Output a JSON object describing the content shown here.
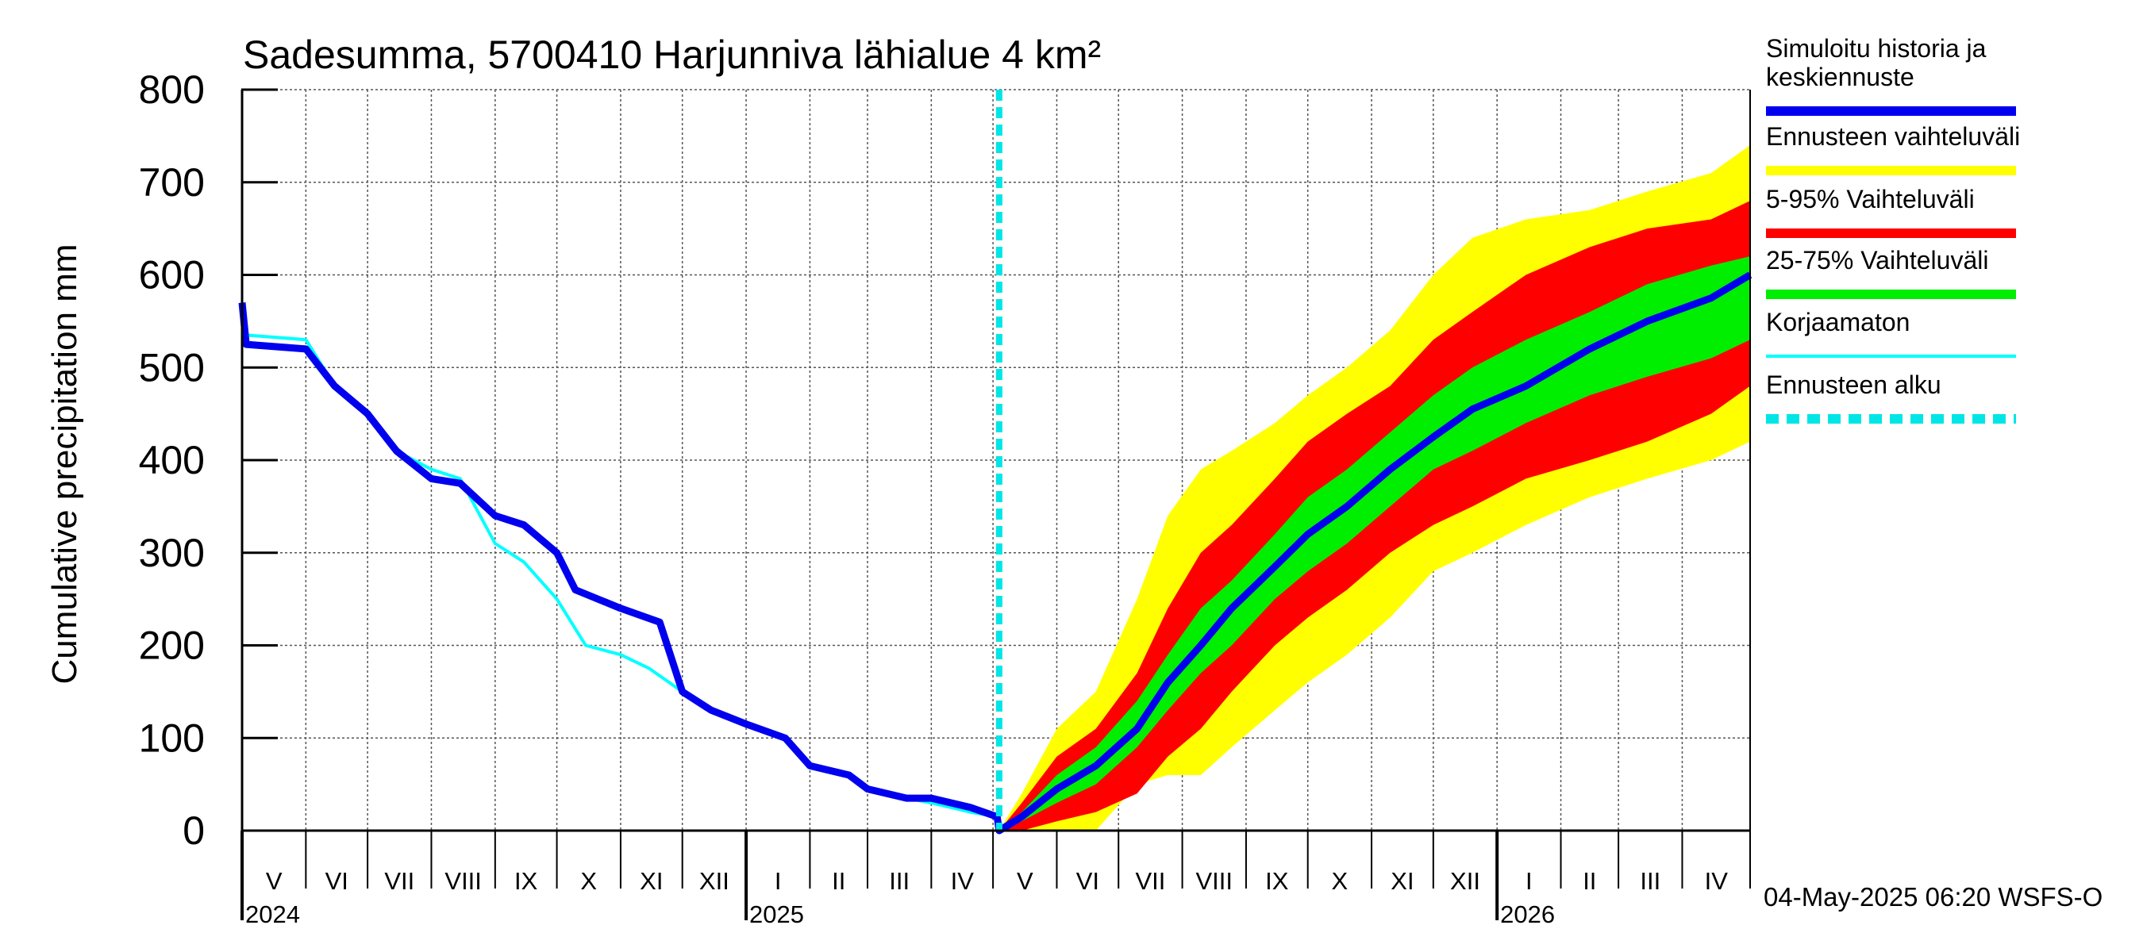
{
  "chart_data": {
    "type": "area",
    "title": "Sadesumma, 5700410 Harjunniva lähialue 4 km²",
    "ylabel": "Cumulative precipitation   mm",
    "ylim": [
      0,
      800
    ],
    "yticks": [
      "0",
      "100",
      "200",
      "300",
      "400",
      "500",
      "600",
      "700",
      "800"
    ],
    "grid": true,
    "x_start": "2024-05-01",
    "x_end": "2026-05-04",
    "forecast_start": "2025-05-04",
    "years": [
      {
        "label": "2024",
        "date": "2024-05-01"
      },
      {
        "label": "2025",
        "date": "2025-01-01"
      },
      {
        "label": "2026",
        "date": "2026-01-01"
      }
    ],
    "months": [
      {
        "label": "V",
        "start": "2024-05-01"
      },
      {
        "label": "VI",
        "start": "2024-06-01"
      },
      {
        "label": "VII",
        "start": "2024-07-01"
      },
      {
        "label": "VIII",
        "start": "2024-08-01"
      },
      {
        "label": "IX",
        "start": "2024-09-01"
      },
      {
        "label": "X",
        "start": "2024-10-01"
      },
      {
        "label": "XI",
        "start": "2024-11-01"
      },
      {
        "label": "XII",
        "start": "2024-12-01"
      },
      {
        "label": "I",
        "start": "2025-01-01"
      },
      {
        "label": "II",
        "start": "2025-02-01"
      },
      {
        "label": "III",
        "start": "2025-03-01"
      },
      {
        "label": "IV",
        "start": "2025-04-01"
      },
      {
        "label": "V",
        "start": "2025-05-01"
      },
      {
        "label": "VI",
        "start": "2025-06-01"
      },
      {
        "label": "VII",
        "start": "2025-07-01"
      },
      {
        "label": "VIII",
        "start": "2025-08-01"
      },
      {
        "label": "IX",
        "start": "2025-09-01"
      },
      {
        "label": "X",
        "start": "2025-10-01"
      },
      {
        "label": "XI",
        "start": "2025-11-01"
      },
      {
        "label": "XII",
        "start": "2025-12-01"
      },
      {
        "label": "I",
        "start": "2026-01-01"
      },
      {
        "label": "II",
        "start": "2026-02-01"
      },
      {
        "label": "III",
        "start": "2026-03-01"
      },
      {
        "label": "IV",
        "start": "2026-04-01"
      }
    ],
    "series": [
      {
        "name": "Ennusteen vaihteluväli",
        "kind": "band",
        "color": "#ffff00",
        "x": [
          "2025-05-04",
          "2025-05-15",
          "2025-06-01",
          "2025-06-20",
          "2025-07-10",
          "2025-07-25",
          "2025-08-10",
          "2025-08-25",
          "2025-09-15",
          "2025-10-01",
          "2025-10-20",
          "2025-11-10",
          "2025-12-01",
          "2025-12-20",
          "2026-01-15",
          "2026-02-15",
          "2026-03-15",
          "2026-04-15",
          "2026-05-04"
        ],
        "upper": [
          0,
          40,
          110,
          150,
          250,
          340,
          390,
          410,
          440,
          470,
          500,
          540,
          600,
          640,
          660,
          670,
          690,
          710,
          740
        ],
        "lower": [
          0,
          0,
          0,
          0,
          50,
          60,
          60,
          90,
          130,
          160,
          190,
          230,
          280,
          300,
          330,
          360,
          380,
          400,
          420
        ]
      },
      {
        "name": "5-95% Vaihteluväli",
        "kind": "band",
        "color": "#ff0000",
        "x": [
          "2025-05-04",
          "2025-05-15",
          "2025-06-01",
          "2025-06-20",
          "2025-07-10",
          "2025-07-25",
          "2025-08-10",
          "2025-08-25",
          "2025-09-15",
          "2025-10-01",
          "2025-10-20",
          "2025-11-10",
          "2025-12-01",
          "2025-12-20",
          "2026-01-15",
          "2026-02-15",
          "2026-03-15",
          "2026-04-15",
          "2026-05-04"
        ],
        "upper": [
          0,
          30,
          80,
          110,
          170,
          240,
          300,
          330,
          380,
          420,
          450,
          480,
          530,
          560,
          600,
          630,
          650,
          660,
          680
        ],
        "lower": [
          0,
          0,
          10,
          20,
          40,
          80,
          110,
          150,
          200,
          230,
          260,
          300,
          330,
          350,
          380,
          400,
          420,
          450,
          480
        ]
      },
      {
        "name": "25-75% Vaihteluväli",
        "kind": "band",
        "color": "#00ee00",
        "x": [
          "2025-05-04",
          "2025-05-15",
          "2025-06-01",
          "2025-06-20",
          "2025-07-10",
          "2025-07-25",
          "2025-08-10",
          "2025-08-25",
          "2025-09-15",
          "2025-10-01",
          "2025-10-20",
          "2025-11-10",
          "2025-12-01",
          "2025-12-20",
          "2026-01-15",
          "2026-02-15",
          "2026-03-15",
          "2026-04-15",
          "2026-05-04"
        ],
        "upper": [
          0,
          20,
          60,
          90,
          140,
          190,
          240,
          270,
          320,
          360,
          390,
          430,
          470,
          500,
          530,
          560,
          590,
          610,
          620
        ],
        "lower": [
          0,
          10,
          30,
          50,
          90,
          130,
          170,
          200,
          250,
          280,
          310,
          350,
          390,
          410,
          440,
          470,
          490,
          510,
          530
        ]
      },
      {
        "name": "Korjaamaton",
        "kind": "line",
        "color": "#00ffff",
        "x": [
          "2024-05-01",
          "2024-05-03",
          "2024-06-01",
          "2024-06-15",
          "2024-07-01",
          "2024-07-15",
          "2024-08-01",
          "2024-08-15",
          "2024-09-01",
          "2024-09-15",
          "2024-10-01",
          "2024-10-15",
          "2024-11-01",
          "2024-11-15",
          "2024-12-01",
          "2024-12-15",
          "2025-01-01",
          "2025-01-20",
          "2025-02-01",
          "2025-02-20",
          "2025-03-01",
          "2025-03-20",
          "2025-04-01",
          "2025-04-20",
          "2025-05-03"
        ],
        "y": [
          535,
          535,
          530,
          480,
          450,
          410,
          390,
          380,
          310,
          290,
          250,
          200,
          190,
          175,
          150,
          130,
          115,
          100,
          70,
          60,
          45,
          35,
          30,
          20,
          15
        ]
      },
      {
        "name": "Simuloitu historia ja keskiennuste",
        "kind": "line",
        "color": "#0000ee",
        "x": [
          "2024-05-01",
          "2024-05-03",
          "2024-06-01",
          "2024-06-15",
          "2024-07-01",
          "2024-07-15",
          "2024-08-01",
          "2024-08-15",
          "2024-09-01",
          "2024-09-15",
          "2024-10-01",
          "2024-10-10",
          "2024-11-01",
          "2024-11-20",
          "2024-12-01",
          "2024-12-15",
          "2025-01-01",
          "2025-01-20",
          "2025-02-01",
          "2025-02-20",
          "2025-03-01",
          "2025-03-20",
          "2025-04-01",
          "2025-04-20",
          "2025-05-03",
          "2025-05-04",
          "2025-05-15",
          "2025-06-01",
          "2025-06-20",
          "2025-07-10",
          "2025-07-25",
          "2025-08-10",
          "2025-08-25",
          "2025-09-15",
          "2025-10-01",
          "2025-10-20",
          "2025-11-10",
          "2025-12-01",
          "2025-12-20",
          "2026-01-15",
          "2026-02-15",
          "2026-03-15",
          "2026-04-15",
          "2026-05-04"
        ],
        "y": [
          570,
          525,
          520,
          480,
          450,
          410,
          380,
          375,
          340,
          330,
          300,
          260,
          240,
          225,
          150,
          130,
          115,
          100,
          70,
          60,
          45,
          35,
          35,
          25,
          15,
          0,
          15,
          45,
          70,
          110,
          160,
          200,
          240,
          285,
          320,
          350,
          390,
          425,
          455,
          480,
          520,
          550,
          575,
          600
        ]
      }
    ],
    "forecast_line": {
      "name": "Ennusteen alku",
      "color": "#00e5e5"
    }
  },
  "legend": [
    {
      "label": "Simuloitu historia ja keskiennuste",
      "color": "#0000ee",
      "style": "thick"
    },
    {
      "label": "Ennusteen vaihteluväli",
      "color": "#ffff00",
      "style": "thick"
    },
    {
      "label": "5-95% Vaihteluväli",
      "color": "#ff0000",
      "style": "thick"
    },
    {
      "label": "25-75% Vaihteluväli",
      "color": "#00ee00",
      "style": "thick"
    },
    {
      "label": "Korjaamaton",
      "color": "#00ffff",
      "style": "thin"
    },
    {
      "label": "Ennusteen alku",
      "color": "#00e5e5",
      "style": "dashed"
    }
  ],
  "footer": "04-May-2025 06:20 WSFS-O"
}
